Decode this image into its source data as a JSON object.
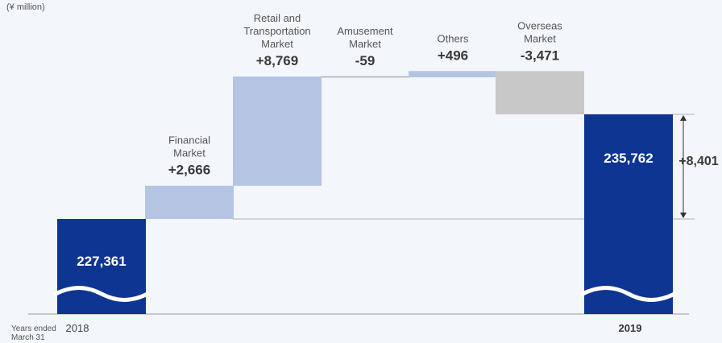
{
  "chart_data": {
    "type": "bar",
    "subtype": "waterfall",
    "unit_label": "(¥ million)",
    "footnote": [
      "Years ended",
      "March 31"
    ],
    "start": {
      "year": "2018",
      "label": "227,361",
      "value": 227361
    },
    "end": {
      "year": "2019",
      "label": "235,762",
      "value": 235762
    },
    "steps": [
      {
        "name": [
          "Financial",
          "Market"
        ],
        "label": "+2,666",
        "value": 2666
      },
      {
        "name": [
          "Retail and",
          "Transportation",
          "Market"
        ],
        "label": "+8,769",
        "value": 8769
      },
      {
        "name": [
          "Amusement",
          "Market"
        ],
        "label": "-59",
        "value": -59
      },
      {
        "name": [
          "Others"
        ],
        "label": "+496",
        "value": 496
      },
      {
        "name": [
          "Overseas",
          "Market"
        ],
        "label": "-3,471",
        "value": -3471
      }
    ],
    "difference": {
      "label": "+8,401",
      "value": 8401
    },
    "axis_break": true,
    "colors": {
      "total": "#0d3591",
      "increase": "#b4c4e2",
      "decrease": "#c8c8c8",
      "connector": "#999999",
      "axis": "#999999"
    }
  }
}
